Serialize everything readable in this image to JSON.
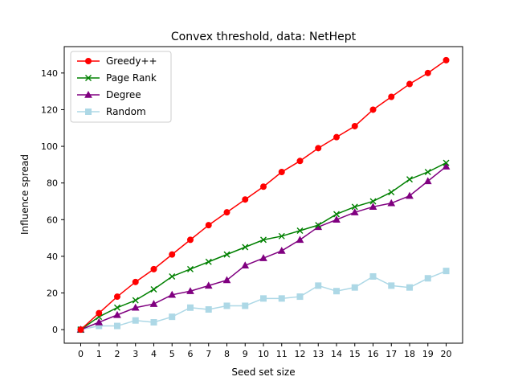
{
  "chart_data": {
    "type": "line",
    "title": "Convex threshold, data: NetHept",
    "xlabel": "Seed set size",
    "ylabel": "Influence spread",
    "xlim": [
      -0.9,
      20.9
    ],
    "ylim": [
      -7.4,
      154.4
    ],
    "x": [
      0,
      1,
      2,
      3,
      4,
      5,
      6,
      7,
      8,
      9,
      10,
      11,
      12,
      13,
      14,
      15,
      16,
      17,
      18,
      19,
      20
    ],
    "xticks": [
      "0",
      "1",
      "2",
      "3",
      "4",
      "5",
      "6",
      "7",
      "8",
      "9",
      "10",
      "11",
      "12",
      "13",
      "14",
      "15",
      "16",
      "17",
      "18",
      "19",
      "20"
    ],
    "yticks": [
      0,
      20,
      40,
      60,
      80,
      100,
      120,
      140
    ],
    "grid": false,
    "legend_position": "top-left",
    "series": [
      {
        "name": "Greedy++",
        "color": "#ff0000",
        "marker": "circle",
        "values": [
          0,
          9,
          18,
          26,
          33,
          41,
          49,
          57,
          64,
          71,
          78,
          86,
          92,
          99,
          105,
          111,
          120,
          127,
          134,
          140,
          147
        ]
      },
      {
        "name": "Page Rank",
        "color": "#008000",
        "marker": "x",
        "values": [
          0,
          7,
          12,
          16,
          22,
          29,
          33,
          37,
          41,
          45,
          49,
          51,
          54,
          57,
          63,
          67,
          70,
          75,
          82,
          86,
          91
        ]
      },
      {
        "name": "Degree",
        "color": "#800080",
        "marker": "triangle",
        "values": [
          0,
          4,
          8,
          12,
          14,
          19,
          21,
          24,
          27,
          35,
          39,
          43,
          49,
          56,
          60,
          64,
          67,
          69,
          73,
          81,
          89
        ]
      },
      {
        "name": "Random",
        "color": "#add8e6",
        "marker": "square",
        "values": [
          0,
          2,
          2,
          5,
          4,
          7,
          12,
          11,
          13,
          13,
          17,
          17,
          18,
          24,
          21,
          23,
          29,
          24,
          23,
          28,
          32
        ]
      }
    ]
  }
}
